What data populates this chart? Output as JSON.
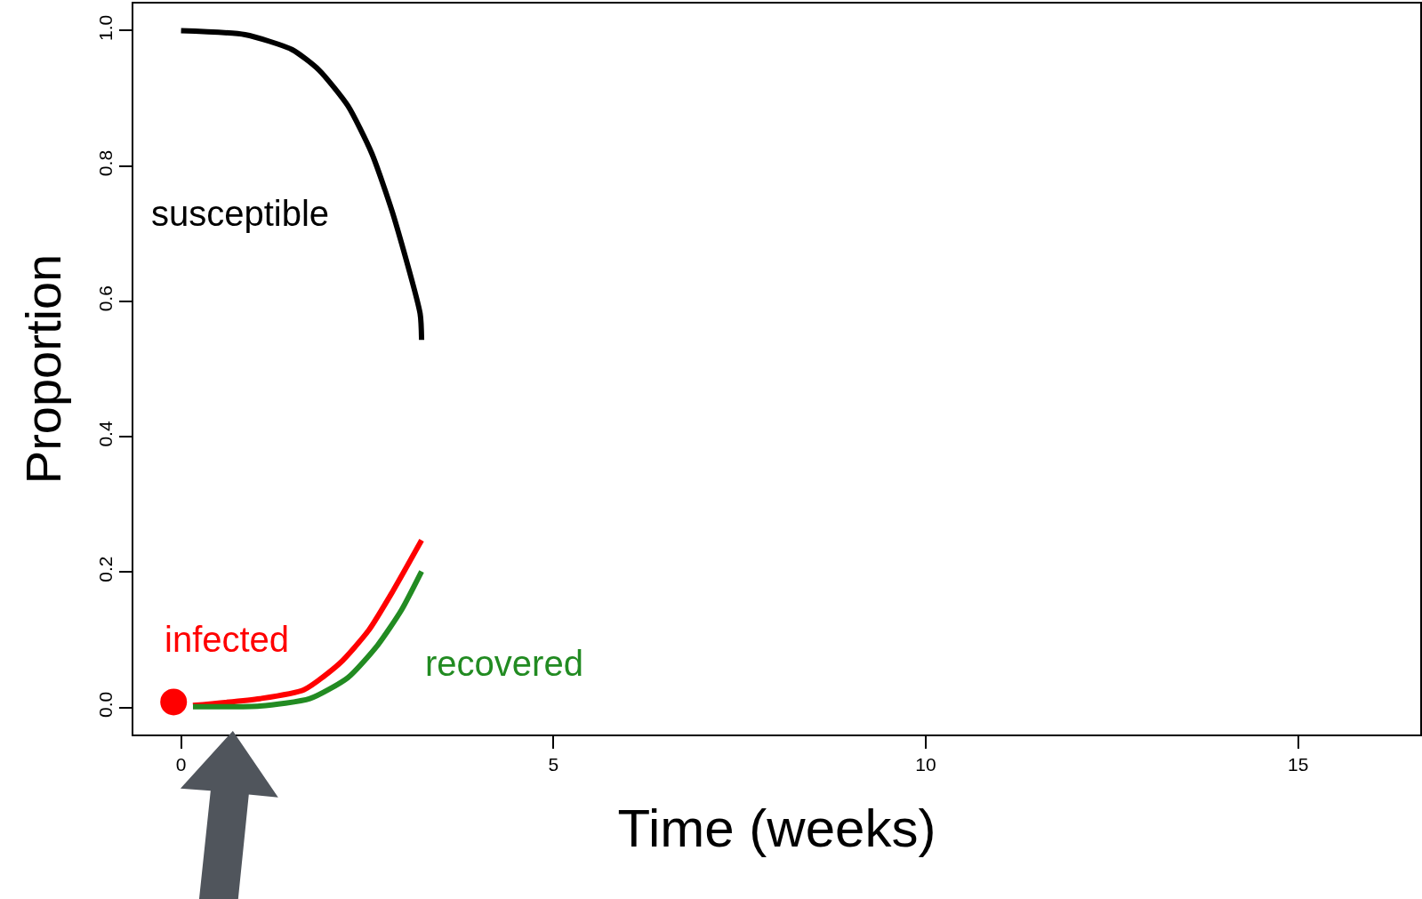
{
  "chart_data": {
    "type": "line",
    "xlabel": "Time (weeks)",
    "ylabel": "Proportion",
    "xlim": [
      -0.64,
      16.64
    ],
    "ylim": [
      -0.04,
      1.04
    ],
    "xticks": [
      0,
      5,
      10,
      15
    ],
    "yticks": [
      {
        "value": 0,
        "label": "0.0"
      },
      {
        "value": 0.2,
        "label": "0.2"
      },
      {
        "value": 0.4,
        "label": "0.4"
      },
      {
        "value": 0.6,
        "label": "0.6"
      },
      {
        "value": 0.8,
        "label": "0.8"
      },
      {
        "value": 1,
        "label": "1.0"
      }
    ],
    "legend": false,
    "line_style": "solid",
    "marker": "none",
    "series": [
      {
        "name": "susceptible",
        "color": "#000000",
        "x": [
          0,
          0.86,
          1.49,
          1.85,
          2.24,
          2.56,
          2.84,
          3.21,
          3.23
        ],
        "values": [
          1.0,
          0.994,
          0.972,
          0.942,
          0.889,
          0.819,
          0.731,
          0.582,
          0.543
        ]
      },
      {
        "name": "infected",
        "color": "#ff0000",
        "x": [
          0.16,
          1.06,
          1.65,
          2.13,
          2.52,
          2.84,
          3.23
        ],
        "values": [
          0.003,
          0.013,
          0.026,
          0.065,
          0.114,
          0.171,
          0.247
        ]
      },
      {
        "name": "recovered",
        "color": "#228b22",
        "x": [
          0.16,
          1.06,
          1.73,
          2.24,
          2.64,
          2.96,
          3.23
        ],
        "values": [
          0.001,
          0.002,
          0.013,
          0.044,
          0.092,
          0.144,
          0.201
        ]
      },
      {
        "type": "scatter",
        "marker": "circle",
        "color": "#ff0000",
        "x": [
          -0.1
        ],
        "values": [
          0.008
        ]
      }
    ]
  }
}
